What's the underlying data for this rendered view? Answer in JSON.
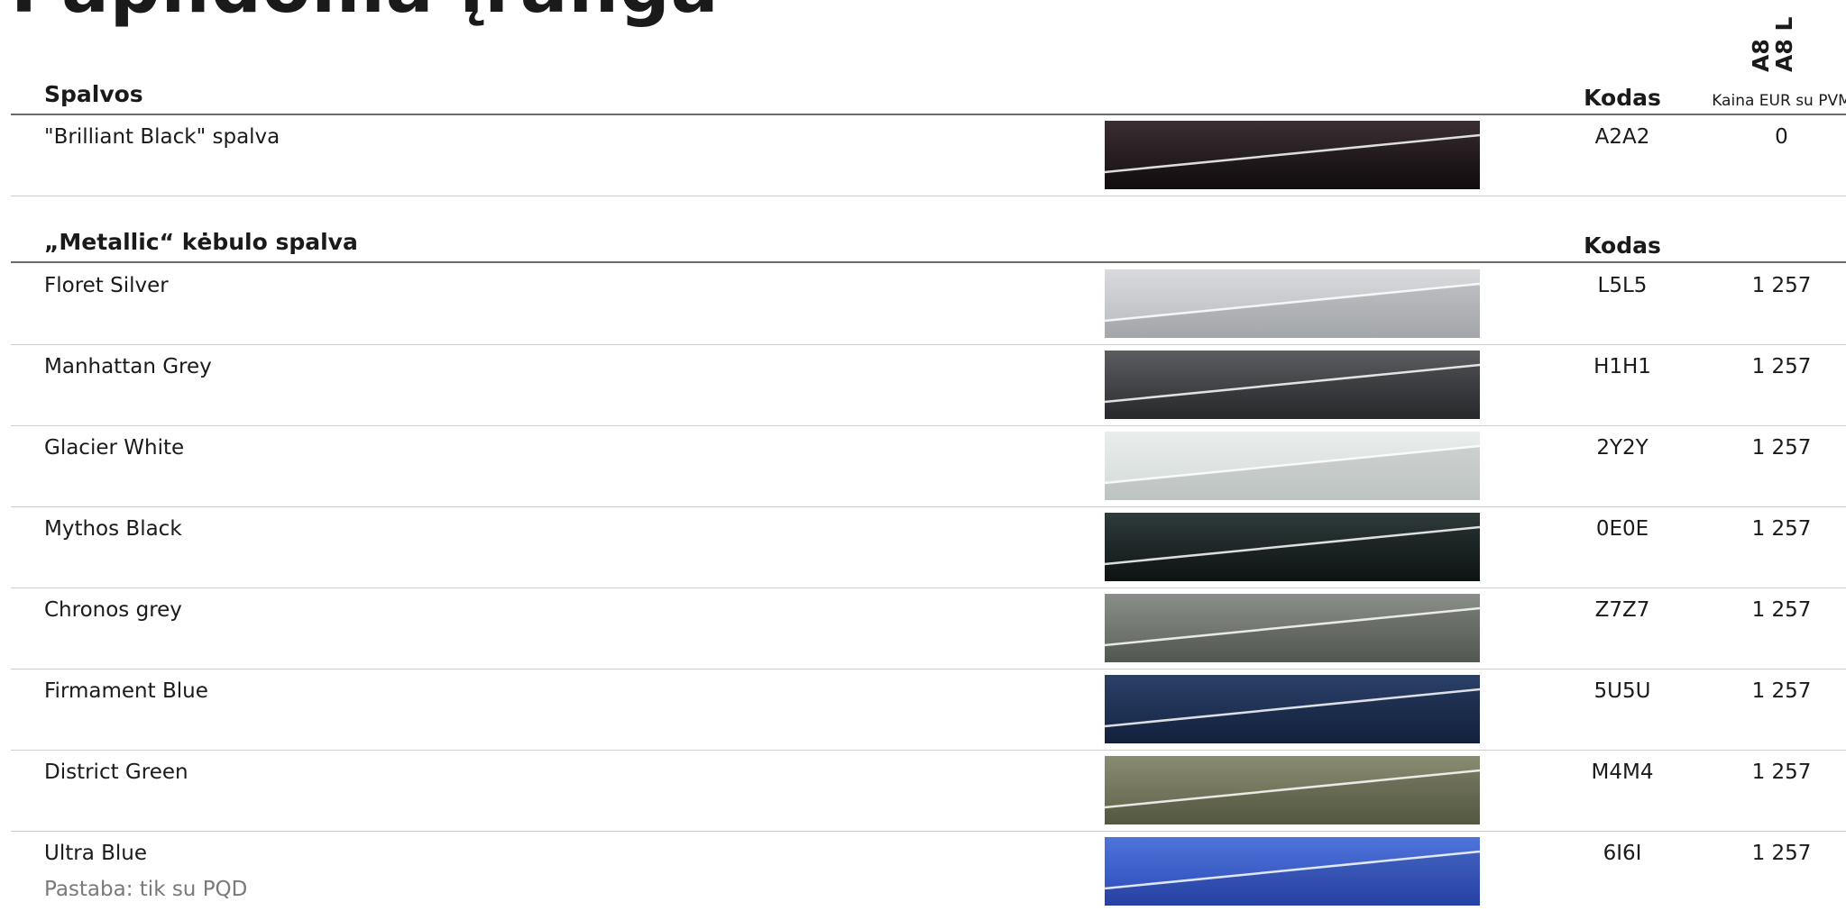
{
  "page": {
    "title": "Papildoma įranga"
  },
  "models": [
    "A8",
    "A8 L"
  ],
  "sections": [
    {
      "title": "Spalvos",
      "code_header": "Kodas",
      "price_header": "Kaina EUR su PVM",
      "rows": [
        {
          "name": "\"Brilliant Black\" spalva",
          "note": "",
          "code": "A2A2",
          "price": "0",
          "swatch_top": "#3a2f32",
          "swatch_bottom": "#140e10"
        }
      ]
    },
    {
      "title": "„Metallic“ kėbulo spalva",
      "code_header": "Kodas",
      "price_header": "",
      "rows": [
        {
          "name": "Floret Silver",
          "note": "",
          "code": "L5L5",
          "price": "1 257",
          "swatch_top": "#d8dadd",
          "swatch_bottom": "#b7babe"
        },
        {
          "name": "Manhattan Grey",
          "note": "",
          "code": "H1H1",
          "price": "1 257",
          "swatch_top": "#5a5c5f",
          "swatch_bottom": "#2c2e31"
        },
        {
          "name": "Glacier White",
          "note": "",
          "code": "2Y2Y",
          "price": "1 257",
          "swatch_top": "#e9eeec",
          "swatch_bottom": "#d3dad8"
        },
        {
          "name": "Mythos Black",
          "note": "",
          "code": "0E0E",
          "price": "1 257",
          "swatch_top": "#2f3a3a",
          "swatch_bottom": "#0f1616"
        },
        {
          "name": "Chronos grey",
          "note": "",
          "code": "Z7Z7",
          "price": "1 257",
          "swatch_top": "#8a8e88",
          "swatch_bottom": "#5d625c"
        },
        {
          "name": "Firmament Blue",
          "note": "",
          "code": "5U5U",
          "price": "1 257",
          "swatch_top": "#2b4068",
          "swatch_bottom": "#142544"
        },
        {
          "name": "District Green",
          "note": "",
          "code": "M4M4",
          "price": "1 257",
          "swatch_top": "#8a8c72",
          "swatch_bottom": "#5f6248"
        },
        {
          "name": "Ultra Blue",
          "note": "Pastaba: tik su PQD",
          "code": "6I6I",
          "price": "1 257",
          "swatch_top": "#4f74d9",
          "swatch_bottom": "#2a49b8"
        }
      ]
    }
  ]
}
